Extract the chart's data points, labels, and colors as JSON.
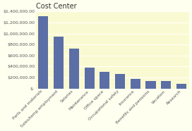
{
  "title": "Cost Center",
  "categories": [
    "Parts and materials",
    "Sales/temp employment",
    "Salaries",
    "Maintenance",
    "Office space",
    "Occupational safety",
    "Insurance",
    "Benefits and pensions",
    "Vacation",
    "Research"
  ],
  "values": [
    1320000,
    940000,
    720000,
    380000,
    300000,
    265000,
    175000,
    140000,
    140000,
    90000
  ],
  "bar_color": "#5b6fa6",
  "background_color": "#fffff0",
  "plot_bg_color": "#fafad2",
  "ylim": [
    0,
    1400000
  ],
  "yticks": [
    0,
    200000,
    400000,
    600000,
    800000,
    1000000,
    1200000,
    1400000
  ],
  "ytick_labels": [
    "$-",
    "$200,000.00",
    "$400,000.00",
    "$600,000.00",
    "$800,000.00",
    "$1,000,000.00",
    "$1,200,000.00",
    "$1,400,000.00"
  ],
  "title_fontsize": 7,
  "tick_fontsize": 4.5,
  "label_fontsize": 4.2
}
